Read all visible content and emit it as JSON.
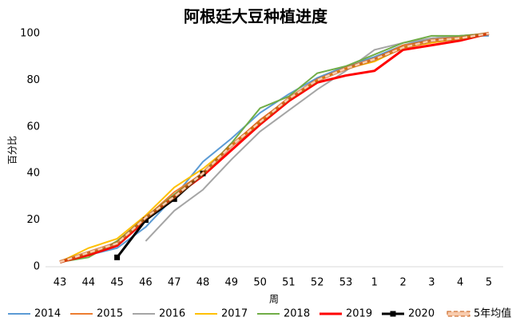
{
  "chart_data": {
    "type": "line",
    "title": "阿根廷大豆种植进度",
    "y_label": "百分比",
    "x_label": "周",
    "categories": [
      "43",
      "44",
      "45",
      "46",
      "47",
      "48",
      "49",
      "50",
      "51",
      "52",
      "53",
      "1",
      "2",
      "3",
      "4",
      "5"
    ],
    "ylim": [
      0,
      100
    ],
    "yticks": [
      0,
      20,
      40,
      60,
      80,
      100
    ],
    "series": [
      {
        "name": "2014",
        "color": "#5b9bd5",
        "values": [
          2,
          5,
          8,
          17,
          30,
          45,
          55,
          66,
          74,
          81,
          86,
          90,
          95,
          98,
          99,
          99
        ]
      },
      {
        "name": "2015",
        "color": "#ed7d31",
        "values": [
          2,
          6,
          9,
          21,
          32,
          40,
          52,
          63,
          72,
          80,
          85,
          89,
          95,
          97,
          99,
          100
        ]
      },
      {
        "name": "2016",
        "color": "#a5a5a5",
        "values": [
          null,
          null,
          null,
          11,
          24,
          33,
          46,
          58,
          67,
          76,
          84,
          93,
          96,
          98,
          99,
          100
        ]
      },
      {
        "name": "2017",
        "color": "#ffc000",
        "values": [
          2,
          8,
          12,
          22,
          34,
          42,
          52,
          62,
          71,
          80,
          85,
          88,
          94,
          96,
          98,
          100
        ]
      },
      {
        "name": "2018",
        "color": "#70ad47",
        "values": [
          2,
          4,
          11,
          21,
          31,
          40,
          53,
          68,
          73,
          83,
          86,
          91,
          96,
          99,
          99,
          100
        ]
      },
      {
        "name": "2019",
        "color": "#ff0000",
        "line_width": 3,
        "values": [
          2,
          5,
          9,
          20,
          30,
          39,
          50,
          61,
          71,
          79,
          82,
          84,
          93,
          95,
          97,
          100
        ]
      },
      {
        "name": "2020",
        "color": "#000000",
        "line_width": 3,
        "marker": "square",
        "values": [
          null,
          null,
          4,
          20,
          29,
          40,
          null,
          null,
          null,
          null,
          null,
          null,
          null,
          null,
          null,
          null
        ]
      },
      {
        "name": "5年均值",
        "color": "#c55a11",
        "dashed": true,
        "values": [
          2,
          6,
          10,
          21,
          30,
          40,
          52,
          62,
          72,
          80,
          85,
          89,
          94,
          97,
          98,
          100
        ]
      }
    ]
  }
}
